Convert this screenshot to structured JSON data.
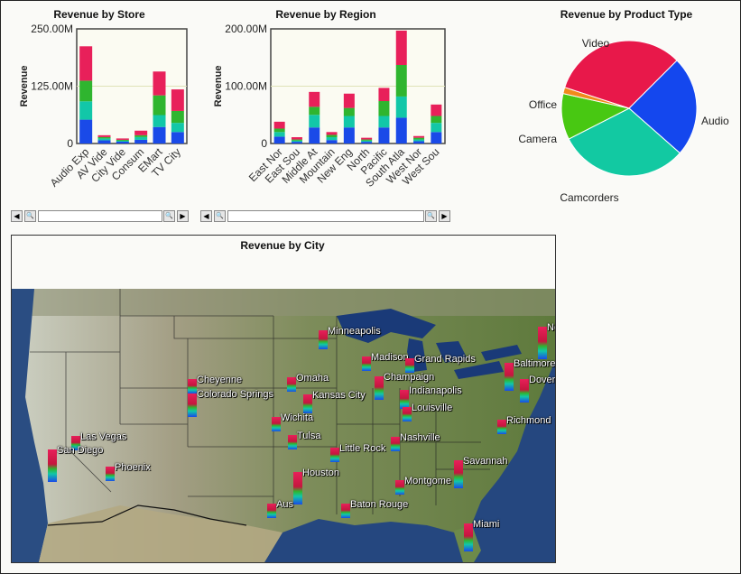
{
  "store_chart": {
    "title": "Revenue by Store",
    "ylabel": "Revenue",
    "yticks": [
      "250.00M",
      "125.00M",
      "0"
    ]
  },
  "region_chart": {
    "title": "Revenue by Region",
    "ylabel": "Revenue",
    "yticks": [
      "200.00M",
      "100.00M",
      "0"
    ]
  },
  "pie_chart": {
    "title": "Revenue by Product Type"
  },
  "map_panel": {
    "title": "Revenue by City"
  },
  "scrollbar_icons": {
    "left": "◀",
    "zoom": "🔍",
    "right": "▶"
  },
  "series_colors": [
    "#1a4ae8",
    "#12c7a8",
    "#2fb52f",
    "#e8205a",
    "#c4163e"
  ],
  "chart_data": [
    {
      "type": "bar",
      "title": "Revenue by Store",
      "xlabel": "",
      "ylabel": "Revenue",
      "ylim": [
        0,
        250000000
      ],
      "categories": [
        "Audio Exp",
        "AV Vide",
        "City Vide",
        "Consum",
        "EMart",
        "TV City"
      ],
      "stacked": true,
      "series": [
        {
          "values": [
            52000000,
            7000000,
            4000000,
            8000000,
            36000000,
            25000000
          ]
        },
        {
          "values": [
            40000000,
            4000000,
            2000000,
            6000000,
            26000000,
            20000000
          ]
        },
        {
          "values": [
            45000000,
            3000000,
            2000000,
            4000000,
            43000000,
            26000000
          ]
        },
        {
          "values": [
            75000000,
            4000000,
            3000000,
            10000000,
            52000000,
            47000000
          ]
        }
      ]
    },
    {
      "type": "bar",
      "title": "Revenue by Region",
      "xlabel": "",
      "ylabel": "Revenue",
      "ylim": [
        0,
        200000000
      ],
      "categories": [
        "East Nor",
        "East Sou",
        "Middle At",
        "Mountain",
        "New Eng",
        "North",
        "Pacific",
        "South Atla",
        "West Nor",
        "West Sou"
      ],
      "stacked": true,
      "series": [
        {
          "values": [
            12000000,
            3000000,
            28000000,
            6000000,
            28000000,
            3000000,
            28000000,
            45000000,
            4000000,
            20000000
          ]
        },
        {
          "values": [
            8000000,
            2000000,
            22000000,
            5000000,
            20000000,
            2000000,
            20000000,
            37000000,
            3000000,
            16000000
          ]
        },
        {
          "values": [
            6000000,
            2000000,
            14000000,
            4000000,
            14000000,
            2000000,
            26000000,
            55000000,
            3000000,
            12000000
          ]
        },
        {
          "values": [
            12000000,
            4000000,
            26000000,
            5000000,
            25000000,
            3000000,
            23000000,
            60000000,
            3000000,
            20000000
          ]
        }
      ]
    },
    {
      "type": "pie",
      "title": "Revenue by Product Type",
      "slices": [
        {
          "label": "Video",
          "value": 32.5,
          "color": "#e8184a"
        },
        {
          "label": "Audio",
          "value": 24,
          "color": "#1447ee"
        },
        {
          "label": "Camcorders",
          "value": 31,
          "color": "#12c9a2"
        },
        {
          "label": "Camera",
          "value": 11,
          "color": "#48c812"
        },
        {
          "label": "Office",
          "value": 1.5,
          "color": "#f08a1c"
        }
      ]
    },
    {
      "type": "map",
      "title": "Revenue by City",
      "cities": [
        {
          "name": "Minneapolis",
          "value": 3
        },
        {
          "name": "Madison",
          "value": 2
        },
        {
          "name": "Grand Rapids",
          "value": 2
        },
        {
          "name": "New York",
          "label": "Ne",
          "value": 6
        },
        {
          "name": "Cheyenne",
          "value": 2
        },
        {
          "name": "Omaha",
          "value": 2
        },
        {
          "name": "Champaign",
          "value": 4
        },
        {
          "name": "Baltimore",
          "value": 5
        },
        {
          "name": "Dover",
          "value": 4
        },
        {
          "name": "Colorado Springs",
          "value": 4
        },
        {
          "name": "Kansas City",
          "value": 3
        },
        {
          "name": "Indianapolis",
          "value": 3
        },
        {
          "name": "Louisville",
          "value": 2
        },
        {
          "name": "Richmond",
          "value": 2
        },
        {
          "name": "Wichita",
          "value": 2
        },
        {
          "name": "Las Vegas",
          "value": 2
        },
        {
          "name": "Tulsa",
          "value": 2
        },
        {
          "name": "Nashville",
          "value": 2
        },
        {
          "name": "San Diego",
          "value": 6
        },
        {
          "name": "Little Rock",
          "value": 2
        },
        {
          "name": "Phoenix",
          "value": 2
        },
        {
          "name": "Savannah",
          "value": 5
        },
        {
          "name": "Houston",
          "value": 6
        },
        {
          "name": "Montgome",
          "value": 2
        },
        {
          "name": "Austin",
          "label": "Aus",
          "value": 2
        },
        {
          "name": "Baton Rouge",
          "value": 2
        },
        {
          "name": "Miami",
          "value": 5
        }
      ]
    }
  ]
}
